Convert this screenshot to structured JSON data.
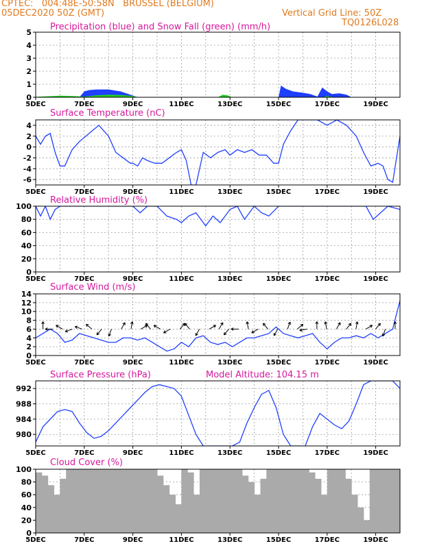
{
  "header": {
    "line1_left": "CPTEC:   004:48E-50:58N   BRUSSEL (BELGIUM)",
    "line2_left": "05DEC2020 50Z (GMT)",
    "line2_right": "Vertical Grid Line: 50Z",
    "line3_right": "TQ0126L028"
  },
  "colors": {
    "header": "#e07a1f",
    "title": "#d6179c",
    "line": "#1f3fff",
    "precip": "#1f3fff",
    "snow": "#22cc22",
    "cloud": "#aaaaaa",
    "wind_arrow": "#000000"
  },
  "chart_data": [
    {
      "type": "area",
      "title": "Precipitation (blue) and Snow Fall (green) (mm/h)",
      "ylim": [
        0,
        5
      ],
      "yticks": [
        "0",
        "1",
        "2",
        "3",
        "4",
        "5"
      ],
      "xticks": [
        "5DEC",
        "7DEC",
        "9DEC",
        "11DEC",
        "13DEC",
        "15DEC",
        "17DEC",
        "19DEC"
      ],
      "grid": true,
      "series": [
        {
          "name": "Precipitation",
          "x": [
            5.0,
            6.8,
            7.0,
            7.2,
            7.5,
            8.0,
            8.5,
            8.9,
            9.2,
            12.6,
            12.8,
            13.0,
            15.0,
            15.1,
            15.3,
            15.6,
            16.0,
            16.3,
            16.6,
            16.8,
            17.0,
            17.2,
            17.5,
            17.8,
            18.0,
            20.0,
            20.1
          ],
          "values": [
            0,
            0,
            0.45,
            0.55,
            0.6,
            0.6,
            0.45,
            0.2,
            0,
            0,
            0.05,
            0,
            0,
            0.9,
            0.65,
            0.45,
            0.35,
            0.25,
            0.05,
            0.75,
            0.45,
            0.25,
            0.3,
            0.2,
            0,
            0,
            0.75
          ]
        },
        {
          "name": "Snow Fall",
          "x": [
            5.0,
            5.5,
            6.0,
            6.5,
            7.0,
            7.5,
            8.0,
            8.5,
            9.0,
            9.2,
            12.5,
            12.7,
            12.9,
            13.1,
            16.8,
            17.0,
            17.3
          ],
          "values": [
            0.03,
            0.08,
            0.12,
            0.1,
            0.05,
            0.15,
            0.2,
            0.18,
            0.1,
            0,
            0,
            0.2,
            0.15,
            0,
            0,
            0.1,
            0
          ]
        }
      ]
    },
    {
      "type": "line",
      "title": "Surface Temperature (nC)",
      "ylim": [
        -7,
        5
      ],
      "yticks": [
        "-6",
        "-4",
        "-2",
        "0",
        "2",
        "4"
      ],
      "xticks": [
        "5DEC",
        "7DEC",
        "9DEC",
        "11DEC",
        "13DEC",
        "15DEC",
        "17DEC",
        "19DEC"
      ],
      "grid": true,
      "series": [
        {
          "name": "Temperature",
          "x": [
            5.0,
            5.2,
            5.4,
            5.6,
            5.8,
            6.0,
            6.2,
            6.5,
            6.8,
            7.2,
            7.6,
            8.0,
            8.3,
            8.6,
            8.9,
            9.0,
            9.2,
            9.4,
            9.6,
            9.9,
            10.2,
            10.5,
            10.8,
            11.0,
            11.2,
            11.4,
            11.6,
            11.9,
            12.2,
            12.5,
            12.8,
            13.0,
            13.3,
            13.6,
            13.9,
            14.2,
            14.5,
            14.8,
            15.0,
            15.2,
            15.5,
            15.8,
            16.2,
            16.6,
            17.0,
            17.4,
            17.8,
            18.2,
            18.5,
            18.8,
            19.1,
            19.3,
            19.5,
            19.7,
            20.0
          ],
          "values": [
            2,
            0.5,
            2,
            2.5,
            -1,
            -3.5,
            -3.5,
            -0.5,
            1,
            2.5,
            4,
            2,
            -1,
            -2,
            -3,
            -3,
            -3.5,
            -2,
            -2.5,
            -3,
            -3,
            -2,
            -1,
            -0.5,
            -2.5,
            -7,
            -7,
            -1,
            -2,
            -1,
            -0.5,
            -1.5,
            -0.5,
            -1,
            -0.5,
            -1.5,
            -1.5,
            -3,
            -3,
            0.5,
            3,
            5,
            5,
            5,
            4,
            5,
            4,
            2,
            -1,
            -3.5,
            -3,
            -3.5,
            -6,
            -6.5,
            2
          ]
        }
      ]
    },
    {
      "type": "line",
      "title": "Relative Humidity (%)",
      "ylim": [
        0,
        100
      ],
      "yticks": [
        "0",
        "20",
        "40",
        "60",
        "80",
        "100"
      ],
      "xticks": [
        "5DEC",
        "7DEC",
        "9DEC",
        "11DEC",
        "13DEC",
        "15DEC",
        "17DEC",
        "19DEC"
      ],
      "grid": true,
      "series": [
        {
          "name": "Relative Humidity",
          "x": [
            5.0,
            5.2,
            5.4,
            5.6,
            5.8,
            6.0,
            6.3,
            6.6,
            7.0,
            7.5,
            8.0,
            8.5,
            9.0,
            9.3,
            9.6,
            10.0,
            10.4,
            10.8,
            11.0,
            11.3,
            11.6,
            12.0,
            12.3,
            12.6,
            13.0,
            13.3,
            13.6,
            14.0,
            14.3,
            14.6,
            15.0,
            15.5,
            16.0,
            16.5,
            17.0,
            17.5,
            18.0,
            18.3,
            18.6,
            18.9,
            19.2,
            19.5,
            20.0
          ],
          "values": [
            100,
            85,
            100,
            80,
            95,
            100,
            100,
            100,
            100,
            100,
            100,
            100,
            100,
            90,
            100,
            100,
            85,
            80,
            75,
            85,
            90,
            70,
            85,
            75,
            95,
            100,
            80,
            100,
            90,
            85,
            100,
            100,
            100,
            100,
            100,
            100,
            100,
            100,
            100,
            80,
            90,
            100,
            95
          ]
        }
      ]
    },
    {
      "type": "line",
      "title": "Surface Wind (m/s)",
      "ylim": [
        0,
        14
      ],
      "yticks": [
        "0",
        "2",
        "4",
        "6",
        "8",
        "10",
        "12",
        "14"
      ],
      "xticks": [
        "5DEC",
        "7DEC",
        "9DEC",
        "11DEC",
        "13DEC",
        "15DEC",
        "17DEC",
        "19DEC"
      ],
      "grid": true,
      "series": [
        {
          "name": "Wind speed",
          "x": [
            5.0,
            5.3,
            5.6,
            5.9,
            6.2,
            6.5,
            6.8,
            7.1,
            7.4,
            7.7,
            8.0,
            8.3,
            8.6,
            8.9,
            9.2,
            9.5,
            9.8,
            10.1,
            10.4,
            10.7,
            11.0,
            11.3,
            11.6,
            11.9,
            12.2,
            12.5,
            12.8,
            13.1,
            13.4,
            13.7,
            14.0,
            14.3,
            14.6,
            14.9,
            15.2,
            15.5,
            15.8,
            16.1,
            16.4,
            16.7,
            17.0,
            17.3,
            17.6,
            17.9,
            18.2,
            18.5,
            18.8,
            19.1,
            19.4,
            19.7,
            20.0
          ],
          "values": [
            4,
            5,
            6,
            5,
            3,
            3.5,
            5,
            4.5,
            4,
            3.5,
            3,
            3,
            4,
            4,
            3.5,
            4,
            3,
            2,
            1,
            1.5,
            3,
            2,
            4,
            4.5,
            3,
            2.5,
            3,
            2,
            3,
            4,
            4,
            4.5,
            5,
            6.5,
            5,
            4.5,
            4,
            4.5,
            5,
            3,
            1.5,
            3,
            4,
            4,
            4.5,
            4,
            5,
            4,
            5,
            6,
            12.5
          ]
        }
      ],
      "wind_arrows_deg": [
        0,
        270,
        300,
        250,
        290,
        310,
        220,
        200,
        30,
        10,
        60,
        320,
        300,
        240,
        40,
        320,
        210,
        60,
        30,
        220,
        270,
        350,
        240,
        320,
        210,
        20,
        50,
        260,
        0,
        350,
        30,
        40,
        10,
        60,
        40,
        200,
        0
      ]
    },
    {
      "type": "line",
      "title": "Surface Pressure (hPa)",
      "subtitle": "Model Altitude: 104.15 m",
      "ylim": [
        977,
        994
      ],
      "yticks": [
        "980",
        "984",
        "988",
        "992"
      ],
      "xticks": [
        "5DEC",
        "7DEC",
        "9DEC",
        "11DEC",
        "13DEC",
        "15DEC",
        "17DEC",
        "19DEC"
      ],
      "grid": true,
      "series": [
        {
          "name": "Pressure",
          "x": [
            5.0,
            5.3,
            5.6,
            5.9,
            6.2,
            6.5,
            6.8,
            7.1,
            7.4,
            7.7,
            8.0,
            8.3,
            8.6,
            8.9,
            9.2,
            9.5,
            9.8,
            10.1,
            10.4,
            10.7,
            11.0,
            11.3,
            11.6,
            11.9,
            12.2,
            12.5,
            12.8,
            13.1,
            13.4,
            13.7,
            14.0,
            14.3,
            14.6,
            14.9,
            15.2,
            15.5,
            15.8,
            16.1,
            16.4,
            16.7,
            17.0,
            17.3,
            17.6,
            17.9,
            18.2,
            18.5,
            18.8,
            19.1,
            19.4,
            19.7,
            20.0
          ],
          "values": [
            978,
            982,
            984,
            986,
            986.5,
            986,
            983,
            980.5,
            979,
            979.5,
            981,
            983,
            985,
            987,
            989,
            991,
            992.5,
            993,
            992.5,
            992,
            990,
            985,
            980,
            977,
            977,
            977,
            977,
            977,
            978,
            983,
            987,
            990.5,
            991.5,
            987,
            980,
            977,
            977,
            977,
            982,
            985.5,
            984,
            982.5,
            981.5,
            983.5,
            988,
            993,
            994,
            994,
            994,
            994,
            992
          ]
        }
      ]
    },
    {
      "type": "bar",
      "title": "Cloud Cover (%)",
      "ylim": [
        0,
        100
      ],
      "yticks": [
        "0",
        "20",
        "40",
        "60",
        "80",
        "100"
      ],
      "xticks": [
        "5DEC",
        "7DEC",
        "9DEC",
        "11DEC",
        "13DEC",
        "15DEC",
        "17DEC",
        "19DEC"
      ],
      "grid": true,
      "series": [
        {
          "name": "Cloud Cover",
          "x": [
            5.0,
            5.25,
            5.5,
            5.75,
            6.0,
            6.25,
            6.5,
            6.75,
            7.0,
            7.25,
            7.5,
            7.75,
            8.0,
            8.25,
            8.5,
            8.75,
            9.0,
            9.25,
            9.5,
            9.75,
            10.0,
            10.25,
            10.5,
            10.75,
            11.0,
            11.25,
            11.5,
            11.75,
            12.0,
            12.25,
            12.5,
            12.75,
            13.0,
            13.25,
            13.5,
            13.75,
            14.0,
            14.25,
            14.5,
            14.75,
            15.0,
            15.25,
            15.5,
            15.75,
            16.0,
            16.25,
            16.5,
            16.75,
            17.0,
            17.25,
            17.5,
            17.75,
            18.0,
            18.25,
            18.5,
            18.75,
            19.0,
            19.25,
            19.5,
            19.75
          ],
          "values": [
            95,
            90,
            75,
            60,
            85,
            100,
            100,
            100,
            100,
            100,
            100,
            100,
            100,
            100,
            100,
            100,
            100,
            100,
            100,
            100,
            90,
            75,
            60,
            45,
            100,
            95,
            60,
            100,
            100,
            100,
            100,
            100,
            100,
            100,
            90,
            80,
            60,
            85,
            100,
            100,
            100,
            100,
            100,
            100,
            100,
            95,
            85,
            60,
            100,
            100,
            100,
            85,
            60,
            40,
            20,
            100,
            100,
            100,
            100,
            100
          ]
        }
      ]
    }
  ]
}
